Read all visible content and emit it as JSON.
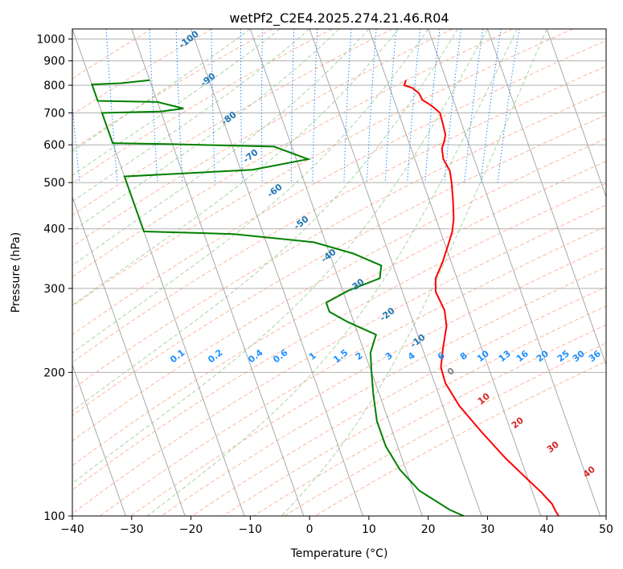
{
  "chart_data": {
    "type": "line",
    "chart_kind": "skew-t log-p",
    "title": "wetPf2_C2E4.2025.274.21.46.R04",
    "xlabel": "Temperature (°C)",
    "ylabel": "Pressure (hPa)",
    "xlim": [
      -40,
      50
    ],
    "ylim": [
      1050,
      100
    ],
    "y_scale": "log",
    "grid": true,
    "x_ticks": [
      -40,
      -30,
      -20,
      -10,
      0,
      10,
      20,
      30,
      40,
      50
    ],
    "y_ticks": [
      100,
      200,
      300,
      400,
      500,
      600,
      700,
      800,
      900,
      1000
    ],
    "series": [
      {
        "role": "temperature",
        "color": "#ff0000",
        "points": [
          [
            13.2,
            820
          ],
          [
            12.6,
            800
          ],
          [
            13.8,
            790
          ],
          [
            14.6,
            770
          ],
          [
            14.8,
            745
          ],
          [
            16.0,
            725
          ],
          [
            17.0,
            700
          ],
          [
            16.8,
            660
          ],
          [
            16.6,
            630
          ],
          [
            16.0,
            610
          ],
          [
            15.2,
            590
          ],
          [
            14.8,
            560
          ],
          [
            15.2,
            530
          ],
          [
            14.8,
            500
          ],
          [
            14.0,
            460
          ],
          [
            13.0,
            420
          ],
          [
            12.0,
            395
          ],
          [
            10.5,
            370
          ],
          [
            8.5,
            340
          ],
          [
            6.4,
            315
          ],
          [
            5.6,
            295
          ],
          [
            6.0,
            270
          ],
          [
            5.4,
            250
          ],
          [
            3.5,
            225
          ],
          [
            2.0,
            205
          ],
          [
            1.8,
            190
          ],
          [
            2.8,
            170
          ],
          [
            5.0,
            150
          ],
          [
            7.5,
            132
          ],
          [
            9.8,
            120
          ],
          [
            11.5,
            112
          ],
          [
            12.6,
            106
          ],
          [
            12.8,
            102
          ],
          [
            13.0,
            100
          ]
        ]
      },
      {
        "role": "dewpoint",
        "color": "#008000",
        "points": [
          [
            -30,
            820
          ],
          [
            -35,
            808
          ],
          [
            -40,
            803
          ],
          [
            -40,
            742
          ],
          [
            -30,
            738
          ],
          [
            -26,
            715
          ],
          [
            -30,
            705
          ],
          [
            -40,
            700
          ],
          [
            -40,
            605
          ],
          [
            -30,
            602
          ],
          [
            -13,
            595
          ],
          [
            -8,
            560
          ],
          [
            -18,
            532
          ],
          [
            -40,
            515
          ],
          [
            -40,
            395
          ],
          [
            -25,
            390
          ],
          [
            -12,
            375
          ],
          [
            -6,
            355
          ],
          [
            -2,
            335
          ],
          [
            -3,
            315
          ],
          [
            -9,
            297
          ],
          [
            -13.5,
            280
          ],
          [
            -13.5,
            268
          ],
          [
            -11,
            255
          ],
          [
            -7,
            240
          ],
          [
            -9,
            220
          ],
          [
            -10,
            200
          ],
          [
            -11,
            180
          ],
          [
            -12,
            158
          ],
          [
            -12,
            140
          ],
          [
            -11,
            125
          ],
          [
            -9,
            113
          ],
          [
            -5,
            103
          ],
          [
            -3,
            100
          ]
        ]
      }
    ],
    "isotherm_labels": {
      "color": "#1f77b4",
      "values": [
        -100,
        -90,
        -80,
        -70,
        -60,
        -50,
        -40,
        -30,
        -20,
        -10
      ]
    },
    "mixing_ratio_labels": {
      "color": "#1e90ff",
      "values": [
        "0.1",
        "0.2",
        "0.4",
        "0.6",
        "1",
        "1.5",
        "2",
        "3",
        "4",
        "6",
        "8",
        "10",
        "13",
        "16",
        "20",
        "25",
        "30",
        "36"
      ]
    },
    "moist_adiabat_labels": {
      "values": [
        {
          "text": "0",
          "color": "#808080"
        },
        {
          "text": "10",
          "color": "#d62728"
        },
        {
          "text": "20",
          "color": "#d62728"
        },
        {
          "text": "30",
          "color": "#d62728"
        },
        {
          "text": "40",
          "color": "#d62728"
        }
      ]
    }
  }
}
